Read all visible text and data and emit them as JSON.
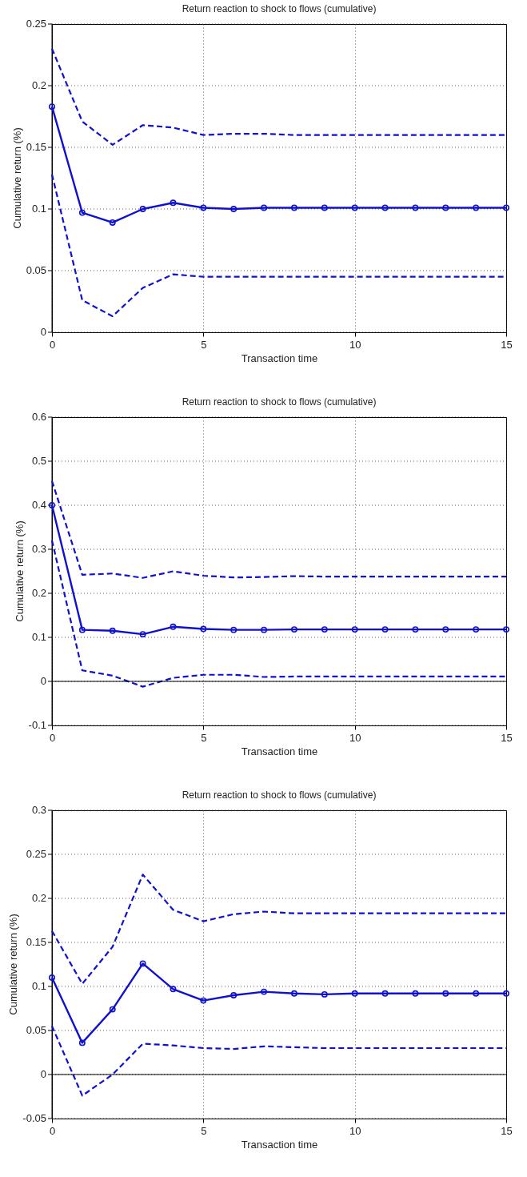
{
  "chart_data": [
    {
      "type": "line",
      "title": "Return reaction to shock to flows (cumulative)",
      "xlabel": "Transaction time",
      "ylabel": "Cumulative return (%)",
      "x": [
        0,
        1,
        2,
        3,
        4,
        5,
        6,
        7,
        8,
        9,
        10,
        11,
        12,
        13,
        14,
        15
      ],
      "xlim": [
        0,
        15
      ],
      "xticks": [
        0,
        5,
        10,
        15
      ],
      "ylim": [
        0,
        0.25
      ],
      "yticks": [
        0,
        0.05,
        0.1,
        0.15,
        0.2,
        0.25
      ],
      "grid": true,
      "series": [
        {
          "color": "#1010d0",
          "marker": "circle",
          "line_style": "solid",
          "values": [
            0.183,
            0.097,
            0.089,
            0.1,
            0.105,
            0.101,
            0.1,
            0.101,
            0.101,
            0.101,
            0.101,
            0.101,
            0.101,
            0.101,
            0.101,
            0.101
          ]
        },
        {
          "color": "#1010d0",
          "marker": "none",
          "line_style": "dashed",
          "values": [
            0.23,
            0.171,
            0.152,
            0.168,
            0.166,
            0.16,
            0.161,
            0.161,
            0.16,
            0.16,
            0.16,
            0.16,
            0.16,
            0.16,
            0.16,
            0.16
          ]
        },
        {
          "color": "#1010d0",
          "marker": "none",
          "line_style": "dashed",
          "values": [
            0.128,
            0.026,
            0.013,
            0.036,
            0.047,
            0.045,
            0.045,
            0.045,
            0.045,
            0.045,
            0.045,
            0.045,
            0.045,
            0.045,
            0.045,
            0.045
          ]
        }
      ]
    },
    {
      "type": "line",
      "title": "Return reaction to shock to flows (cumulative)",
      "xlabel": "Transaction time",
      "ylabel": "Cumulative return (%)",
      "x": [
        0,
        1,
        2,
        3,
        4,
        5,
        6,
        7,
        8,
        9,
        10,
        11,
        12,
        13,
        14,
        15
      ],
      "xlim": [
        0,
        15
      ],
      "xticks": [
        0,
        5,
        10,
        15
      ],
      "ylim": [
        -0.1,
        0.6
      ],
      "yticks": [
        -0.1,
        0,
        0.1,
        0.2,
        0.3,
        0.4,
        0.5,
        0.6
      ],
      "grid": true,
      "ref_lines": [
        {
          "axis": "y",
          "value": 0,
          "color": "#000000"
        }
      ],
      "series": [
        {
          "color": "#1010d0",
          "marker": "circle",
          "line_style": "solid",
          "values": [
            0.4,
            0.117,
            0.115,
            0.107,
            0.124,
            0.119,
            0.117,
            0.117,
            0.118,
            0.118,
            0.118,
            0.118,
            0.118,
            0.118,
            0.118,
            0.118
          ]
        },
        {
          "color": "#1010d0",
          "marker": "none",
          "line_style": "dashed",
          "values": [
            0.455,
            0.242,
            0.245,
            0.235,
            0.25,
            0.24,
            0.236,
            0.237,
            0.239,
            0.238,
            0.238,
            0.238,
            0.238,
            0.238,
            0.238,
            0.238
          ]
        },
        {
          "color": "#1010d0",
          "marker": "none",
          "line_style": "dashed",
          "values": [
            0.32,
            0.025,
            0.013,
            -0.012,
            0.008,
            0.015,
            0.015,
            0.01,
            0.011,
            0.011,
            0.011,
            0.011,
            0.011,
            0.011,
            0.011,
            0.011
          ]
        }
      ]
    },
    {
      "type": "line",
      "title": "Return reaction to shock to flows (cumulative)",
      "xlabel": "Transaction time",
      "ylabel": "Cumulative return (%)",
      "x": [
        0,
        1,
        2,
        3,
        4,
        5,
        6,
        7,
        8,
        9,
        10,
        11,
        12,
        13,
        14,
        15
      ],
      "xlim": [
        0,
        15
      ],
      "xticks": [
        0,
        5,
        10,
        15
      ],
      "ylim": [
        -0.05,
        0.3
      ],
      "yticks": [
        -0.05,
        0,
        0.05,
        0.1,
        0.15,
        0.2,
        0.25,
        0.3
      ],
      "grid": true,
      "ref_lines": [
        {
          "axis": "y",
          "value": 0,
          "color": "#000000"
        }
      ],
      "series": [
        {
          "color": "#1010d0",
          "marker": "circle",
          "line_style": "solid",
          "values": [
            0.11,
            0.036,
            0.074,
            0.126,
            0.097,
            0.084,
            0.09,
            0.094,
            0.092,
            0.091,
            0.092,
            0.092,
            0.092,
            0.092,
            0.092,
            0.092
          ]
        },
        {
          "color": "#1010d0",
          "marker": "none",
          "line_style": "dashed",
          "values": [
            0.163,
            0.103,
            0.145,
            0.227,
            0.187,
            0.174,
            0.182,
            0.185,
            0.183,
            0.183,
            0.183,
            0.183,
            0.183,
            0.183,
            0.183,
            0.183
          ]
        },
        {
          "color": "#1010d0",
          "marker": "none",
          "line_style": "dashed",
          "values": [
            0.055,
            -0.024,
            0.0,
            0.035,
            0.033,
            0.03,
            0.029,
            0.032,
            0.031,
            0.03,
            0.03,
            0.03,
            0.03,
            0.03,
            0.03,
            0.03
          ]
        }
      ]
    }
  ]
}
